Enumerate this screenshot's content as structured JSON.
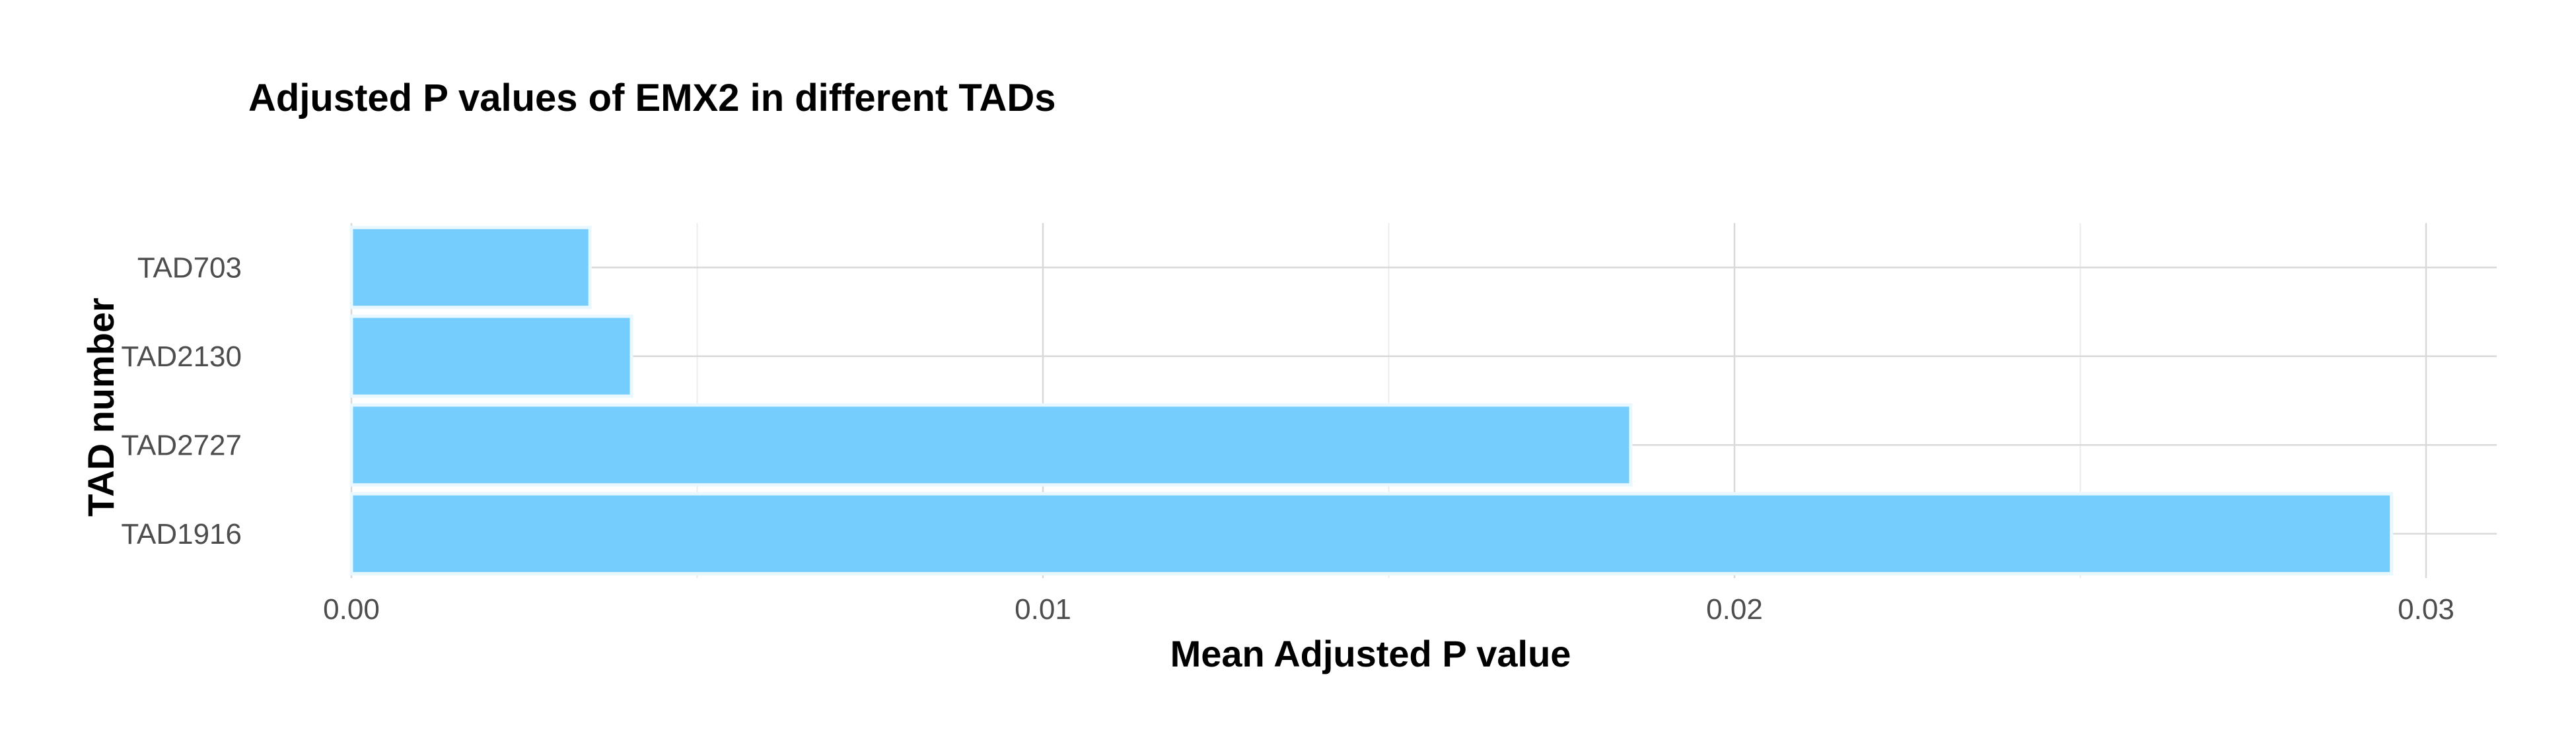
{
  "chart_data": {
    "type": "bar",
    "orientation": "horizontal",
    "title": "Adjusted P values of EMX2 in different TADs",
    "xlabel": "Mean Adjusted P value",
    "ylabel": "TAD number",
    "categories": [
      "TAD703",
      "TAD2130",
      "TAD2727",
      "TAD1916"
    ],
    "values": [
      0.00345,
      0.00405,
      0.0185,
      0.0295
    ],
    "xlim": [
      0,
      0.03
    ],
    "xticks": [
      0,
      0.01,
      0.02,
      0.03
    ],
    "xtick_labels": [
      "0.00",
      "0.01",
      "0.02",
      "0.03"
    ],
    "grid": true,
    "legend": "none",
    "bar_color": "#74cdfd",
    "bar_edge_color": "#e9f7ff",
    "grid_color": "#d9d9d9"
  }
}
